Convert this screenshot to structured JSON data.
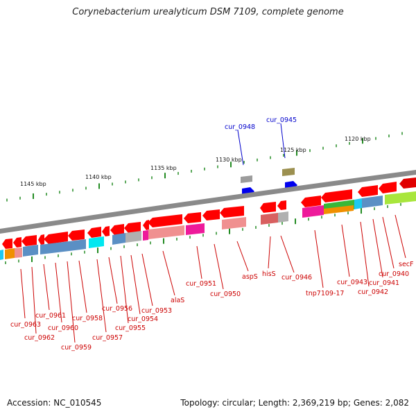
{
  "title": "Corynebacterium urealyticum DSM 7109, complete genome",
  "footer": {
    "accession": "Accession: NC_010545",
    "topology": "Topology: circular; Length: 2,369,219 bp; Genes: 2,082"
  },
  "colors": {
    "forward_gene": "#ff0000",
    "backbone": "#8a8a8a",
    "tick": "#228b22",
    "gene_label": "#cc0000",
    "top_label": "#0000cc"
  },
  "scale_labels": [
    "1145 kbp",
    "1140 kbp",
    "1135 kbp",
    "1130 kbp",
    "1125 kbp",
    "1120 kbp"
  ],
  "top_labels": [
    "cur_0948",
    "cur_0945"
  ],
  "gene_labels": [
    "cur_0963",
    "cur_0962",
    "cur_0961",
    "cur_0960",
    "cur_0959",
    "cur_0958",
    "cur_0957",
    "cur_0956",
    "cur_0955",
    "cur_0954",
    "cur_0953",
    "alaS",
    "cur_0951",
    "cur_0950",
    "aspS",
    "hisS",
    "cur_0946",
    "tnp7109-17",
    "cur_0943",
    "cur_0942",
    "cur_0941",
    "cur_0940",
    "secF"
  ]
}
